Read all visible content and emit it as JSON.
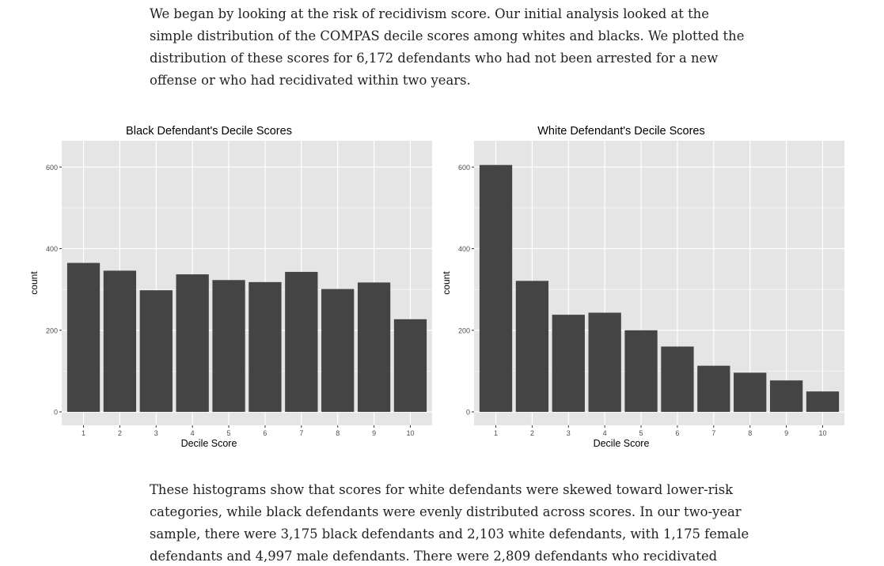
{
  "article": {
    "intro_lines": [
      "We began by looking at the risk of recidivism score. Our initial analysis looked at the",
      "simple distribution of the COMPAS decile scores among whites and blacks. We plotted the",
      "distribution of these scores for 6,172 defendants who had not been arrested for a new",
      "offense or who had recidivated within two years."
    ],
    "followup_lines": [
      "These histograms show that scores for white defendants were skewed toward lower-risk",
      "categories, while black defendants were evenly distributed across scores. In our two-year",
      "sample, there were 3,175 black defendants and 2,103 white defendants, with 1,175 female",
      "defendants and 4,997 male defendants. There were 2,809 defendants who recidivated"
    ]
  },
  "colors": {
    "panel_background": "#e5e5e5",
    "gridline": "#ffffff",
    "bar": "#444444",
    "axis_text": "#4d4d4d",
    "title_text": "#000000"
  },
  "chart_data": [
    {
      "type": "bar",
      "title": "Black Defendant's Decile Scores",
      "xlabel": "Decile Score",
      "ylabel": "count",
      "categories": [
        "1",
        "2",
        "3",
        "4",
        "5",
        "6",
        "7",
        "8",
        "9",
        "10"
      ],
      "values": [
        365,
        346,
        298,
        337,
        323,
        318,
        343,
        301,
        317,
        227
      ],
      "ylim": [
        0,
        680
      ],
      "yticks": [
        0,
        200,
        400,
        600
      ],
      "grid": true
    },
    {
      "type": "bar",
      "title": "White Defendant's Decile Scores",
      "xlabel": "Decile Score",
      "ylabel": "count",
      "categories": [
        "1",
        "2",
        "3",
        "4",
        "5",
        "6",
        "7",
        "8",
        "9",
        "10"
      ],
      "values": [
        605,
        321,
        238,
        243,
        200,
        160,
        113,
        96,
        77,
        50
      ],
      "ylim": [
        0,
        680
      ],
      "yticks": [
        0,
        200,
        400,
        600
      ],
      "grid": true
    }
  ]
}
